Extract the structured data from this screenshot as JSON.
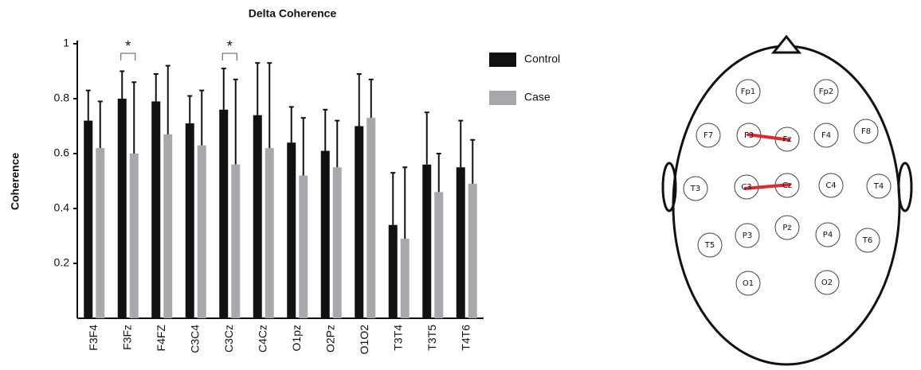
{
  "chart_data": {
    "type": "bar",
    "title": "Delta Coherence",
    "y_label": "Coherence",
    "categories": [
      "F3F4",
      "F3Fz",
      "F4FZ",
      "C3C4",
      "C3Cz",
      "C4Cz",
      "O1pz",
      "O2Pz",
      "O1O2",
      "T3T4",
      "T3T5",
      "T4T6"
    ],
    "series": [
      {
        "name": "Control",
        "color": "#111111",
        "values": [
          0.72,
          0.8,
          0.79,
          0.71,
          0.76,
          0.74,
          0.64,
          0.61,
          0.7,
          0.34,
          0.56,
          0.55
        ],
        "errors": [
          0.11,
          0.1,
          0.1,
          0.1,
          0.15,
          0.19,
          0.13,
          0.15,
          0.19,
          0.19,
          0.19,
          0.17
        ]
      },
      {
        "name": "Case",
        "color": "#a6a8ab",
        "values": [
          0.62,
          0.6,
          0.67,
          0.63,
          0.56,
          0.62,
          0.52,
          0.55,
          0.73,
          0.29,
          0.46,
          0.49
        ],
        "errors": [
          0.17,
          0.26,
          0.25,
          0.2,
          0.31,
          0.31,
          0.21,
          0.17,
          0.14,
          0.26,
          0.14,
          0.16
        ]
      }
    ],
    "annotations": [
      {
        "text": "*",
        "category": "F3Fz"
      },
      {
        "text": "*",
        "category": "C3Cz"
      }
    ],
    "ylim": [
      0,
      1
    ],
    "yticks": [
      0.2,
      0.4,
      0.6,
      0.8,
      1
    ],
    "legend": "right"
  },
  "head_map": {
    "electrodes": [
      "Fp1",
      "Fp2",
      "F7",
      "F3",
      "Fz",
      "F4",
      "F8",
      "T3",
      "C3",
      "Cz",
      "C4",
      "T4",
      "T5",
      "P3",
      "Pz",
      "P4",
      "T6",
      "O1",
      "O2"
    ]
  }
}
